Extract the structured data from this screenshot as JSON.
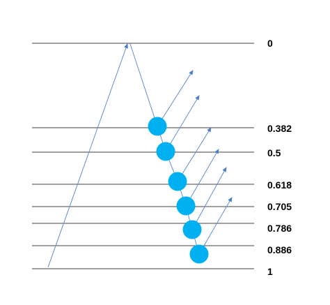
{
  "levels": [
    "0",
    "0.382",
    "0.5",
    "0.618",
    "0.705",
    "0.786",
    "0.886",
    "1"
  ],
  "colors": {
    "level_line": "#404040",
    "impulse_line": "#5b8fd6",
    "marker": "#00b0f0",
    "text": "#000000"
  }
}
